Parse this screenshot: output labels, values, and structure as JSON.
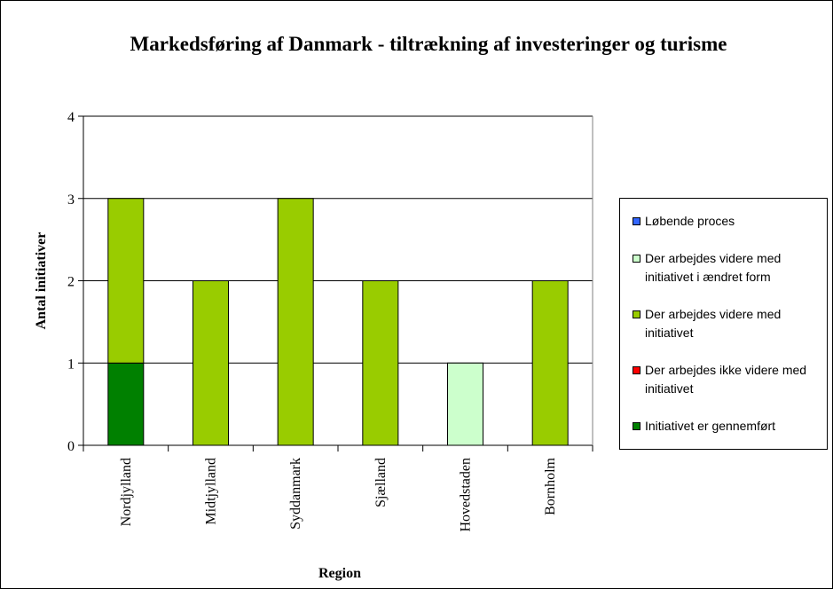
{
  "chart_data": {
    "type": "stacked_bar",
    "title": "Markedsføring af Danmark - tiltrækning af investeringer og turisme",
    "x_label": "Region",
    "y_label": "Antal initiativer",
    "categories": [
      "Nordjylland",
      "Midtjylland",
      "Syddanmark",
      "Sjælland",
      "Hovedstaden",
      "Bornholm"
    ],
    "series": [
      {
        "name": "Initiativet er gennemført",
        "color": "#008000",
        "values": [
          1,
          0,
          0,
          0,
          0,
          0
        ]
      },
      {
        "name": "Der arbejdes ikke videre med initiativet",
        "color": "#ff0000",
        "values": [
          0,
          0,
          0,
          0,
          0,
          0
        ]
      },
      {
        "name": "Der arbejdes videre med initiativet",
        "color": "#99cc00",
        "values": [
          2,
          2,
          3,
          2,
          0,
          2
        ]
      },
      {
        "name": "Der arbejdes videre med initiativet i ændret form",
        "color": "#ccffcc",
        "values": [
          0,
          0,
          0,
          0,
          1,
          0
        ]
      },
      {
        "name": "Løbende proces",
        "color": "#3366ff",
        "values": [
          0,
          0,
          0,
          0,
          0,
          0
        ]
      }
    ],
    "ylim": [
      0,
      4
    ],
    "yticks": [
      0,
      1,
      2,
      3,
      4
    ],
    "grid": true,
    "legend": "right"
  }
}
